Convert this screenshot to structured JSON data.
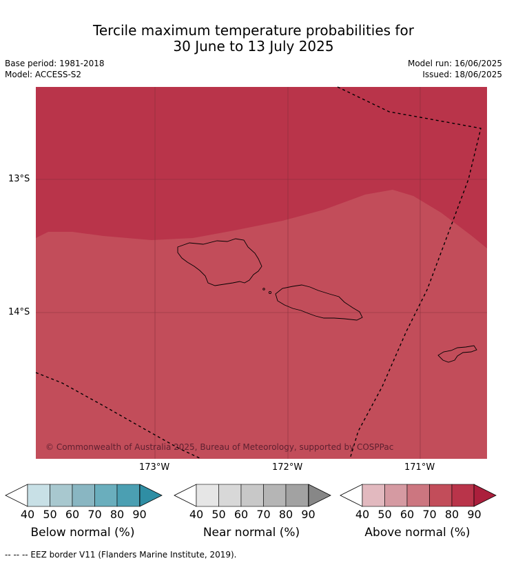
{
  "title_line1": "Tercile maximum temperature probabilities for",
  "title_line2": "30 June to 13 July 2025",
  "base_period": "Base period: 1981-2018",
  "model": "Model: ACCESS-S2",
  "model_run": "Model run: 16/06/2025",
  "issued": "Issued: 18/06/2025",
  "lat_labels": [
    "13°S",
    "14°S"
  ],
  "lon_labels": [
    "173°W",
    "172°W",
    "171°W"
  ],
  "copyright": "© Commonwealth of Australia 2025, Bureau of Meteorology, supported by COSPPac",
  "colorbars": [
    {
      "title": "Below normal (%)",
      "ticks": [
        "40",
        "50",
        "60",
        "70",
        "80",
        "90"
      ],
      "colors": [
        "#c8e0e6",
        "#a8c8cf",
        "#89b6c2",
        "#6aaebd",
        "#4b9fb2",
        "#2f8ea4"
      ]
    },
    {
      "title": "Near normal (%)",
      "ticks": [
        "40",
        "50",
        "60",
        "70",
        "80",
        "90"
      ],
      "colors": [
        "#e6e6e6",
        "#d8d8d8",
        "#c8c8c8",
        "#b5b5b5",
        "#a2a2a2",
        "#878787"
      ]
    },
    {
      "title": "Above normal (%)",
      "ticks": [
        "40",
        "50",
        "60",
        "70",
        "80",
        "90"
      ],
      "colors": [
        "#e2b9bf",
        "#d59aa2",
        "#cc7680",
        "#c24d5a",
        "#b9344a",
        "#ab1f3c"
      ]
    }
  ],
  "footnote": "-- -- -- EEZ border V11 (Flanders Marine Institute, 2019).",
  "map": {
    "region_colors": {
      "above_80": "#b9344a",
      "above_70": "#c24d5a"
    },
    "gridline_color": "#7a2a36"
  }
}
